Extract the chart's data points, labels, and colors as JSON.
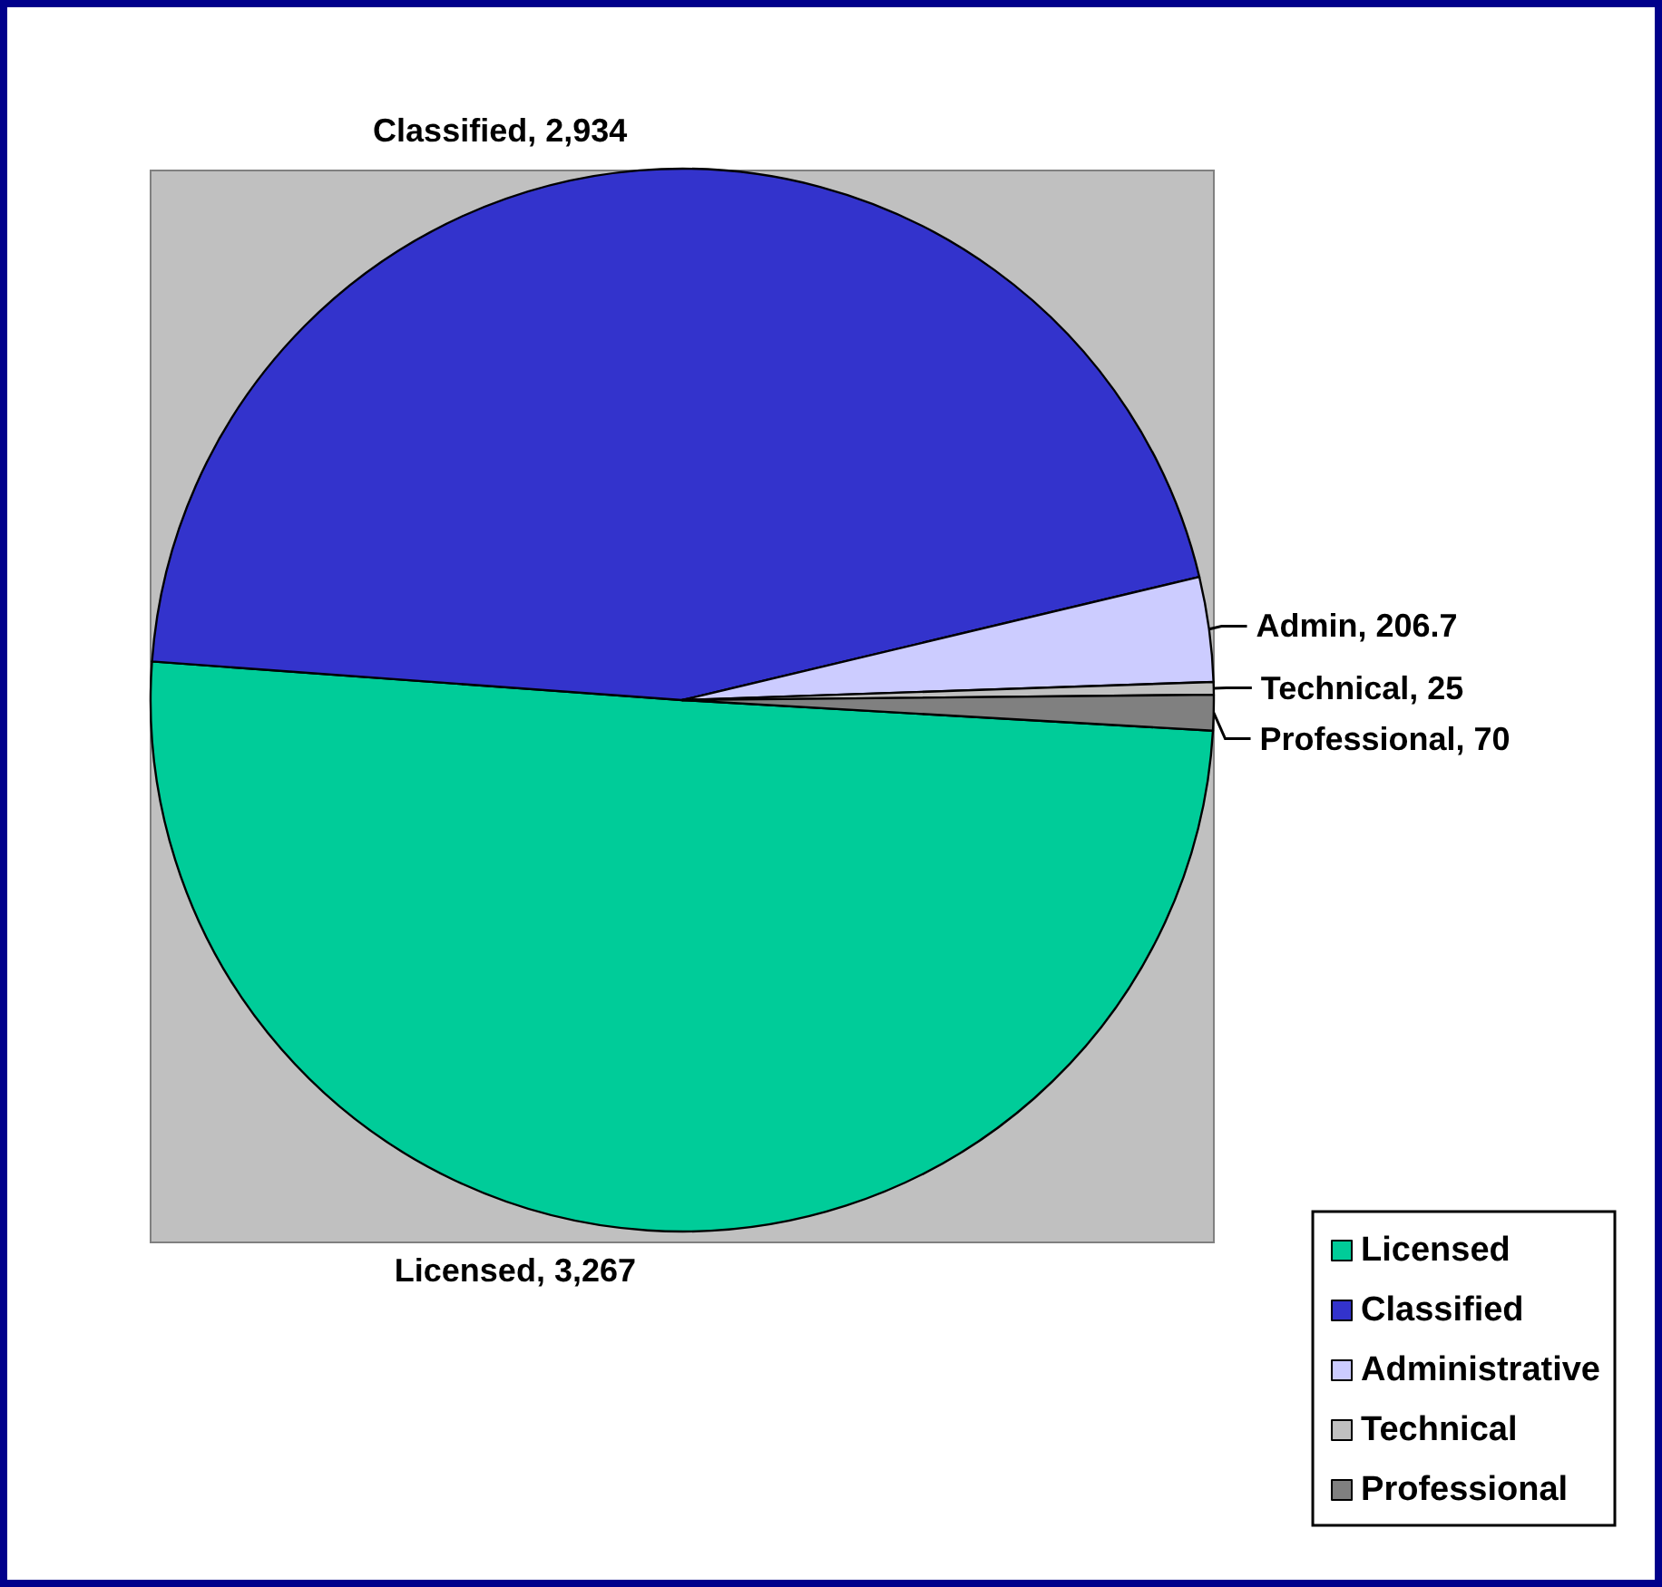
{
  "chart_data": {
    "type": "pie",
    "categories": [
      "Licensed",
      "Classified",
      "Administrative",
      "Technical",
      "Professional"
    ],
    "values": [
      3267,
      2934,
      206.7,
      25,
      70
    ],
    "colors": [
      "#00cc99",
      "#3333cc",
      "#ccccff",
      "#c0c0c0",
      "#808080"
    ],
    "value_labels": [
      "Licensed, 3,267",
      "Classified, 2,934",
      "Admin, 206.7",
      "Technical, 25",
      "Professional, 70"
    ],
    "legend": "bottom right"
  }
}
